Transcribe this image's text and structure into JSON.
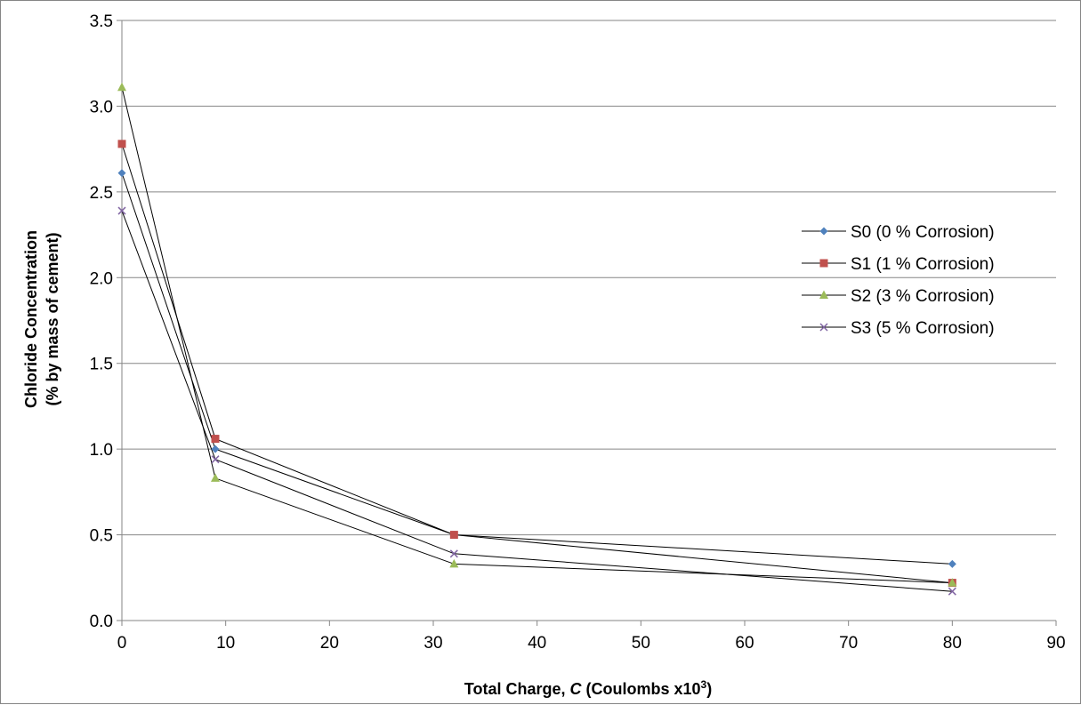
{
  "chart_data": {
    "type": "line",
    "x": [
      0,
      9,
      32,
      80
    ],
    "series": [
      {
        "name": "S0 (0 % Corrosion)",
        "values": [
          2.61,
          1.0,
          0.5,
          0.33
        ],
        "color": "#4F81BD",
        "marker": "diamond"
      },
      {
        "name": "S1 (1 % Corrosion)",
        "values": [
          2.78,
          1.06,
          0.5,
          0.22
        ],
        "color": "#C0504D",
        "marker": "square"
      },
      {
        "name": "S2 (3 % Corrosion)",
        "values": [
          3.11,
          0.83,
          0.33,
          0.22
        ],
        "color": "#9BBB59",
        "marker": "triangle"
      },
      {
        "name": "S3 (5 % Corrosion)",
        "values": [
          2.39,
          0.94,
          0.39,
          0.17
        ],
        "color": "#8064A2",
        "marker": "x"
      }
    ],
    "line_color": "#000000",
    "xlim": [
      0,
      90
    ],
    "ylim": [
      0,
      3.5
    ],
    "xticks": [
      "0",
      "10",
      "20",
      "30",
      "40",
      "50",
      "60",
      "70",
      "80",
      "90"
    ],
    "yticks": [
      "0.0",
      "0.5",
      "1.0",
      "1.5",
      "2.0",
      "2.5",
      "3.0",
      "3.5"
    ],
    "xlabel_main": "Total Charge, ",
    "xlabel_italic": "C",
    "xlabel_rest": " (Coulombs x10",
    "xlabel_sup": "3",
    "xlabel_end": ")",
    "ylabel_line1": "Chloride Concentration",
    "ylabel_line2": "(% by mass of cement)",
    "grid": "horizontal",
    "legend_position": "right"
  }
}
